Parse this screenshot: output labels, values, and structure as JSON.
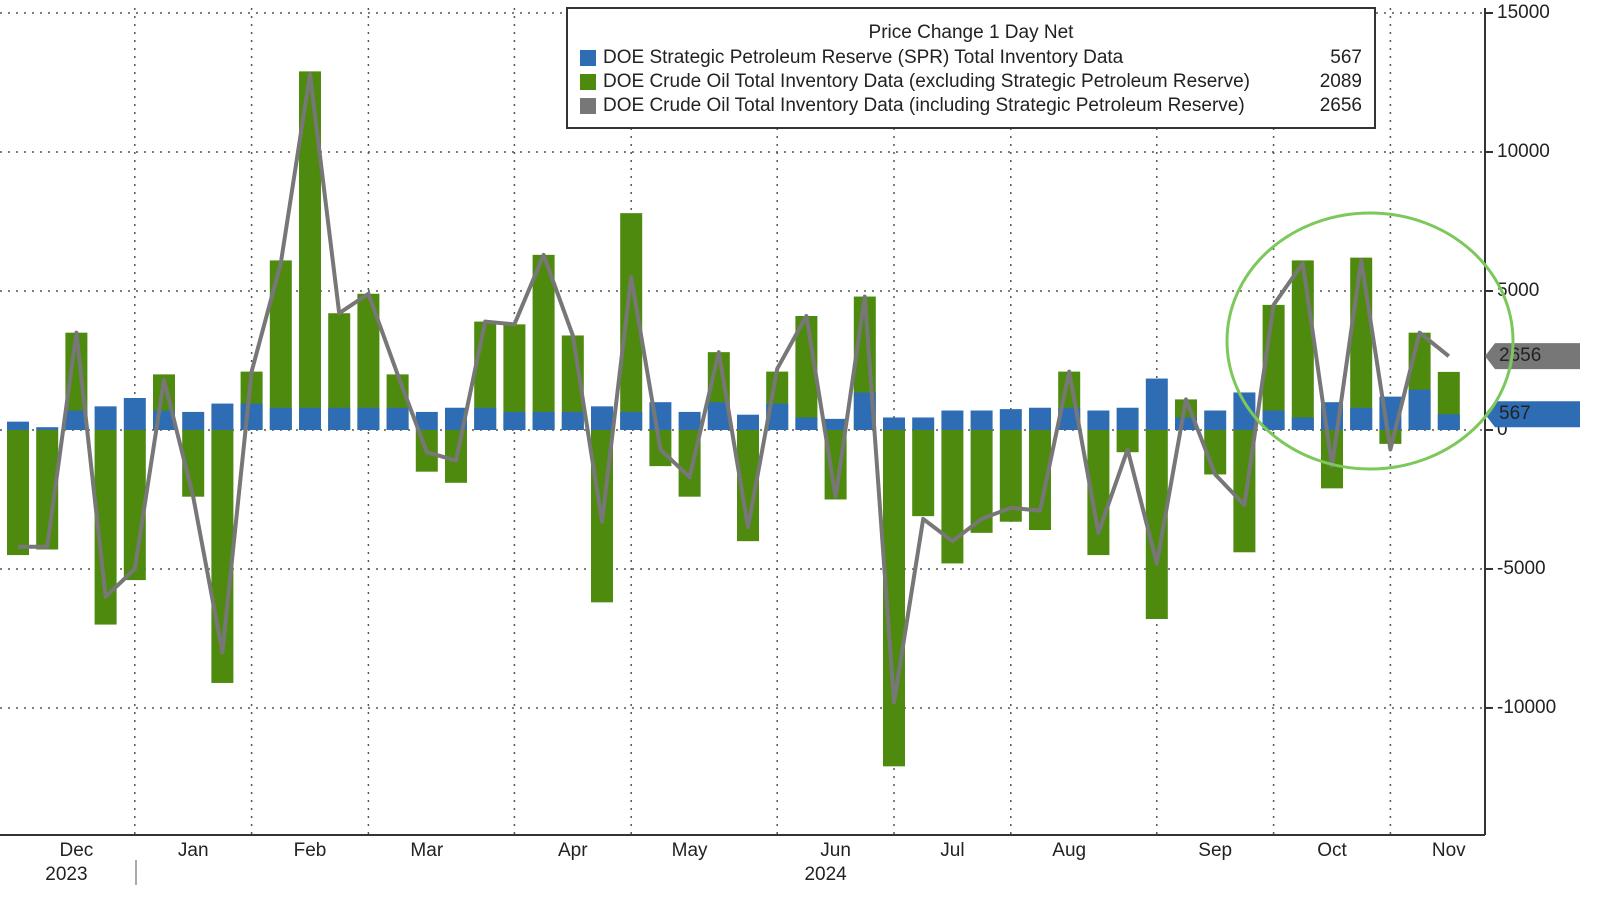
{
  "chart_data": {
    "type": "bar_line",
    "legend_title": "Price Change 1 Day Net",
    "categories": [
      null,
      null,
      "Dec",
      null,
      null,
      null,
      "Jan",
      null,
      null,
      null,
      "Feb",
      null,
      null,
      null,
      "Mar",
      null,
      null,
      null,
      null,
      "Apr",
      null,
      null,
      null,
      "May",
      null,
      null,
      null,
      null,
      "Jun",
      null,
      null,
      null,
      "Jul",
      null,
      null,
      null,
      "Aug",
      null,
      null,
      null,
      null,
      "Sep",
      null,
      null,
      null,
      "Oct",
      null,
      null,
      null,
      "Nov"
    ],
    "years": [
      "2023",
      "2024"
    ],
    "series": [
      {
        "name": "DOE Crude Oil Total Inventory Data (excluding Strategic Petroleum Reserve)",
        "color": "#4e8a0e",
        "latest": 2089,
        "values": [
          -4500,
          -4300,
          3500,
          -7000,
          -5400,
          2000,
          -2400,
          -9100,
          2100,
          6100,
          12900,
          4200,
          4900,
          2000,
          -1500,
          -1900,
          3900,
          3800,
          6300,
          3400,
          -6200,
          7800,
          -1300,
          -2400,
          2800,
          -4000,
          2100,
          4100,
          -2500,
          4800,
          -12100,
          -3100,
          -4800,
          -3700,
          -3300,
          -3600,
          2100,
          -4500,
          -800,
          -6800,
          1100,
          -1600,
          -4400,
          4500,
          6100,
          -2100,
          6200,
          -500,
          3500,
          2089
        ]
      },
      {
        "name": "DOE Strategic Petroleum Reserve (SPR) Total Inventory Data",
        "color": "#2e6db4",
        "latest": 567,
        "values": [
          300,
          100,
          700,
          850,
          1150,
          700,
          650,
          950,
          950,
          800,
          800,
          800,
          800,
          800,
          650,
          800,
          800,
          650,
          650,
          650,
          850,
          650,
          1000,
          650,
          1000,
          550,
          950,
          450,
          400,
          1350,
          450,
          450,
          700,
          700,
          750,
          800,
          800,
          700,
          800,
          1850,
          450,
          700,
          1350,
          700,
          450,
          1000,
          800,
          1200,
          1450,
          567
        ]
      },
      {
        "name": "DOE Crude Oil Total Inventory Data (including Strategic Petroleum Reserve)",
        "color": "#777777",
        "latest": 2656,
        "values": [
          -4200,
          -4200,
          3500,
          -6000,
          -5000,
          1800,
          -2400,
          -8000,
          2100,
          6000,
          12800,
          4200,
          4900,
          2000,
          -800,
          -1100,
          3900,
          3800,
          6300,
          3400,
          -3300,
          5500,
          -700,
          -1700,
          2800,
          -3500,
          2200,
          4100,
          -2400,
          4800,
          -9800,
          -3200,
          -4000,
          -3200,
          -2800,
          -2900,
          2100,
          -3700,
          -700,
          -4800,
          1100,
          -1600,
          -2700,
          4500,
          6000,
          -1300,
          6100,
          -700,
          3500,
          2656
        ]
      }
    ],
    "ylim": [
      -14570,
      15180
    ],
    "yticks": [
      15000,
      10000,
      5000,
      0,
      -5000,
      -10000
    ],
    "grid": true
  }
}
